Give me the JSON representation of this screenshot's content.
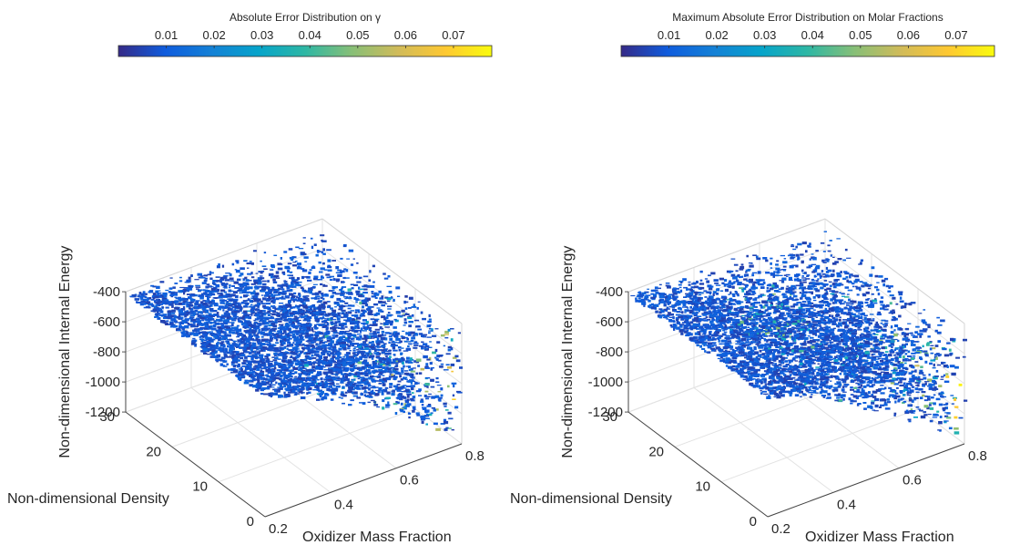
{
  "chart_data": [
    {
      "type": "scatter3d",
      "colorbar": {
        "title": "Absolute Error Distribution on γ",
        "ticks": [
          "0.01",
          "0.02",
          "0.03",
          "0.04",
          "0.05",
          "0.06",
          "0.07"
        ],
        "range": [
          0,
          0.078
        ],
        "colormap": "parula",
        "colors": [
          "#352a87",
          "#0f5cdd",
          "#1481d6",
          "#06a4ca",
          "#2eb7a4",
          "#87bf77",
          "#d1bb59",
          "#fec832",
          "#f9fb0e"
        ]
      },
      "x_axis": {
        "label": "Oxidizer Mass Fraction",
        "ticks": [
          "0.2",
          "0.4",
          "0.6",
          "0.8"
        ],
        "range": [
          0.2,
          0.8
        ]
      },
      "y_axis": {
        "label": "Non-dimensional Density",
        "ticks": [
          "0",
          "10",
          "20",
          "30"
        ],
        "range": [
          0,
          30
        ]
      },
      "z_axis": {
        "label": "Non-dimensional Internal Energy",
        "ticks": [
          "-400",
          "-600",
          "-800",
          "-1000",
          "-1200"
        ],
        "range": [
          -1200,
          -400
        ]
      },
      "grid": true,
      "series": [
        {
          "x": [
            0.25,
            0.35,
            0.45,
            0.55,
            0.65,
            0.75,
            0.3,
            0.5,
            0.7,
            0.6,
            0.68,
            0.72
          ],
          "y": [
            30,
            25,
            20,
            15,
            10,
            5,
            28,
            18,
            8,
            12,
            3,
            2
          ],
          "z": [
            -430,
            -520,
            -650,
            -800,
            -950,
            -1100,
            -480,
            -720,
            -1000,
            -880,
            -1150,
            -1180
          ],
          "error": [
            0.005,
            0.006,
            0.008,
            0.012,
            0.02,
            0.05,
            0.004,
            0.01,
            0.06,
            0.03,
            0.07,
            0.075
          ]
        }
      ]
    },
    {
      "type": "scatter3d",
      "colorbar": {
        "title": "Maximum Absolute Error Distribution on Molar Fractions",
        "ticks": [
          "0.01",
          "0.02",
          "0.03",
          "0.04",
          "0.05",
          "0.06",
          "0.07"
        ],
        "range": [
          0,
          0.078
        ],
        "colormap": "parula",
        "colors": [
          "#352a87",
          "#0f5cdd",
          "#1481d6",
          "#06a4ca",
          "#2eb7a4",
          "#87bf77",
          "#d1bb59",
          "#fec832",
          "#f9fb0e"
        ]
      },
      "x_axis": {
        "label": "Oxidizer Mass Fraction",
        "ticks": [
          "0.2",
          "0.4",
          "0.6",
          "0.8"
        ],
        "range": [
          0.2,
          0.8
        ]
      },
      "y_axis": {
        "label": "Non-dimensional Density",
        "ticks": [
          "0",
          "10",
          "20",
          "30"
        ],
        "range": [
          0,
          30
        ]
      },
      "z_axis": {
        "label": "Non-dimensional Internal Energy",
        "ticks": [
          "-400",
          "-600",
          "-800",
          "-1000",
          "-1200"
        ],
        "range": [
          -1200,
          -400
        ]
      },
      "grid": true,
      "series": [
        {
          "x": [
            0.25,
            0.35,
            0.45,
            0.55,
            0.65,
            0.75,
            0.3,
            0.5,
            0.7,
            0.6,
            0.68,
            0.72
          ],
          "y": [
            30,
            25,
            20,
            15,
            10,
            5,
            28,
            18,
            8,
            12,
            3,
            2
          ],
          "z": [
            -430,
            -520,
            -650,
            -800,
            -950,
            -1100,
            -480,
            -720,
            -1000,
            -880,
            -1150,
            -1180
          ],
          "error": [
            0.005,
            0.006,
            0.01,
            0.04,
            0.02,
            0.05,
            0.004,
            0.03,
            0.06,
            0.035,
            0.07,
            0.075
          ]
        }
      ]
    }
  ]
}
